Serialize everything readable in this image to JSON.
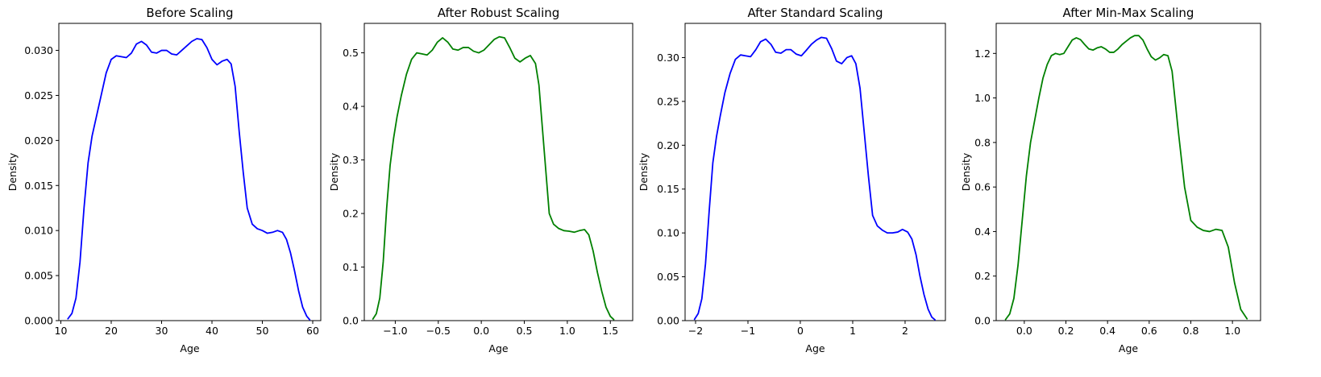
{
  "chart_data": [
    {
      "type": "line",
      "title": "Before Scaling",
      "xlabel": "Age",
      "ylabel": "Density",
      "xlim": [
        9.6,
        61.6
      ],
      "ylim": [
        0,
        0.033
      ],
      "xticks": [
        10,
        20,
        30,
        40,
        50,
        60
      ],
      "xtick_labels": [
        "10",
        "20",
        "30",
        "40",
        "50",
        "60"
      ],
      "yticks": [
        0,
        0.005,
        0.01,
        0.015,
        0.02,
        0.025,
        0.03
      ],
      "ytick_labels": [
        "0.000",
        "0.005",
        "0.010",
        "0.015",
        "0.020",
        "0.025",
        "0.030"
      ],
      "color": "#0000ff",
      "series": [
        {
          "x": [
            11.4,
            12.2,
            13.0,
            13.8,
            14.6,
            15.4,
            16.2,
            17.0,
            18.0,
            19.0,
            20.0,
            21.0,
            22.0,
            23.0,
            24.0,
            25.0,
            26.0,
            27.0,
            28.0,
            29.0,
            30.0,
            31.0,
            32.0,
            33.0,
            34.0,
            35.0,
            36.0,
            37.0,
            38.0,
            39.0,
            40.0,
            41.0,
            42.0,
            43.0,
            43.8,
            44.6,
            45.4,
            46.2,
            47.0,
            48.0,
            49.0,
            50.0,
            51.0,
            52.0,
            53.0,
            54.0,
            54.8,
            55.6,
            56.4,
            57.2,
            58.0,
            58.8,
            59.4
          ],
          "y": [
            0.0002,
            0.0008,
            0.0025,
            0.0065,
            0.0125,
            0.0175,
            0.0205,
            0.0225,
            0.025,
            0.0275,
            0.029,
            0.0294,
            0.0293,
            0.0292,
            0.0297,
            0.0307,
            0.031,
            0.0306,
            0.0298,
            0.0297,
            0.03,
            0.03,
            0.0296,
            0.0295,
            0.03,
            0.0305,
            0.031,
            0.0313,
            0.0312,
            0.0303,
            0.029,
            0.0284,
            0.0288,
            0.029,
            0.0285,
            0.026,
            0.021,
            0.0165,
            0.0125,
            0.0107,
            0.0102,
            0.01,
            0.0097,
            0.0098,
            0.01,
            0.0098,
            0.009,
            0.0075,
            0.0055,
            0.0033,
            0.0015,
            0.0005,
            0.0001
          ]
        }
      ]
    },
    {
      "type": "line",
      "title": "After Robust Scaling",
      "xlabel": "Age",
      "ylabel": "Density",
      "xlim": [
        -1.36,
        1.76
      ],
      "ylim": [
        0,
        0.555
      ],
      "xticks": [
        -1.0,
        -0.5,
        0.0,
        0.5,
        1.0,
        1.5
      ],
      "xtick_labels": [
        "−1.0",
        "−0.5",
        "0.0",
        "0.5",
        "1.0",
        "1.5"
      ],
      "yticks": [
        0,
        0.1,
        0.2,
        0.3,
        0.4,
        0.5
      ],
      "ytick_labels": [
        "0.0",
        "0.1",
        "0.2",
        "0.3",
        "0.4",
        "0.5"
      ],
      "color": "#008000",
      "series": [
        {
          "x": [
            -1.26,
            -1.22,
            -1.18,
            -1.14,
            -1.1,
            -1.06,
            -1.02,
            -0.98,
            -0.93,
            -0.87,
            -0.81,
            -0.75,
            -0.69,
            -0.63,
            -0.57,
            -0.51,
            -0.45,
            -0.39,
            -0.33,
            -0.27,
            -0.21,
            -0.15,
            -0.09,
            -0.03,
            0.03,
            0.09,
            0.15,
            0.21,
            0.27,
            0.33,
            0.39,
            0.45,
            0.51,
            0.57,
            0.63,
            0.67,
            0.71,
            0.75,
            0.79,
            0.84,
            0.9,
            0.96,
            1.02,
            1.08,
            1.14,
            1.2,
            1.25,
            1.3,
            1.35,
            1.4,
            1.45,
            1.5,
            1.54
          ],
          "y": [
            0.003,
            0.013,
            0.042,
            0.11,
            0.21,
            0.29,
            0.34,
            0.38,
            0.42,
            0.46,
            0.488,
            0.5,
            0.498,
            0.496,
            0.505,
            0.52,
            0.528,
            0.52,
            0.507,
            0.505,
            0.51,
            0.51,
            0.503,
            0.5,
            0.505,
            0.515,
            0.525,
            0.53,
            0.528,
            0.51,
            0.49,
            0.483,
            0.49,
            0.495,
            0.48,
            0.44,
            0.36,
            0.28,
            0.2,
            0.18,
            0.172,
            0.168,
            0.167,
            0.165,
            0.168,
            0.17,
            0.16,
            0.13,
            0.09,
            0.055,
            0.025,
            0.008,
            0.002
          ]
        }
      ]
    },
    {
      "type": "line",
      "title": "After Standard Scaling",
      "xlabel": "Age",
      "ylabel": "Density",
      "xlim": [
        -2.2,
        2.77
      ],
      "ylim": [
        0,
        0.339
      ],
      "xticks": [
        -2,
        -1,
        0,
        1,
        2
      ],
      "xtick_labels": [
        "−2",
        "−1",
        "0",
        "1",
        "2"
      ],
      "yticks": [
        0,
        0.05,
        0.1,
        0.15,
        0.2,
        0.25,
        0.3
      ],
      "ytick_labels": [
        "0.00",
        "0.05",
        "0.10",
        "0.15",
        "0.20",
        "0.25",
        "0.30"
      ],
      "color": "#0000ff",
      "series": [
        {
          "x": [
            -2.02,
            -1.95,
            -1.88,
            -1.81,
            -1.74,
            -1.67,
            -1.6,
            -1.53,
            -1.44,
            -1.34,
            -1.24,
            -1.14,
            -1.05,
            -0.95,
            -0.85,
            -0.76,
            -0.66,
            -0.56,
            -0.47,
            -0.37,
            -0.27,
            -0.18,
            -0.08,
            0.02,
            0.11,
            0.21,
            0.31,
            0.4,
            0.5,
            0.6,
            0.69,
            0.79,
            0.89,
            0.98,
            1.06,
            1.14,
            1.22,
            1.3,
            1.38,
            1.47,
            1.57,
            1.66,
            1.76,
            1.86,
            1.95,
            2.05,
            2.13,
            2.21,
            2.28,
            2.36,
            2.44,
            2.51,
            2.57
          ],
          "y": [
            0.0015,
            0.008,
            0.025,
            0.065,
            0.125,
            0.18,
            0.21,
            0.233,
            0.26,
            0.282,
            0.298,
            0.303,
            0.302,
            0.301,
            0.309,
            0.318,
            0.321,
            0.315,
            0.306,
            0.305,
            0.309,
            0.309,
            0.304,
            0.302,
            0.308,
            0.315,
            0.32,
            0.323,
            0.322,
            0.31,
            0.296,
            0.293,
            0.3,
            0.302,
            0.293,
            0.265,
            0.215,
            0.165,
            0.12,
            0.108,
            0.103,
            0.1,
            0.1,
            0.101,
            0.104,
            0.101,
            0.093,
            0.075,
            0.052,
            0.03,
            0.013,
            0.004,
            0.001
          ]
        }
      ]
    },
    {
      "type": "line",
      "title": "After Min-Max Scaling",
      "xlabel": "Age",
      "ylabel": "Density",
      "xlim": [
        -0.135,
        1.135
      ],
      "ylim": [
        0,
        1.335
      ],
      "xticks": [
        0.0,
        0.2,
        0.4,
        0.6,
        0.8,
        1.0
      ],
      "xtick_labels": [
        "0.0",
        "0.2",
        "0.4",
        "0.6",
        "0.8",
        "1.0"
      ],
      "yticks": [
        0,
        0.2,
        0.4,
        0.6,
        0.8,
        1.0,
        1.2
      ],
      "ytick_labels": [
        "0.0",
        "0.2",
        "0.4",
        "0.6",
        "0.8",
        "1.0",
        "1.2"
      ],
      "color": "#008000",
      "series": [
        {
          "x": [
            -0.09,
            -0.07,
            -0.05,
            -0.03,
            -0.01,
            0.01,
            0.03,
            0.05,
            0.07,
            0.09,
            0.11,
            0.13,
            0.15,
            0.17,
            0.19,
            0.21,
            0.23,
            0.25,
            0.27,
            0.29,
            0.31,
            0.33,
            0.35,
            0.37,
            0.39,
            0.41,
            0.43,
            0.45,
            0.47,
            0.49,
            0.51,
            0.53,
            0.55,
            0.57,
            0.59,
            0.61,
            0.63,
            0.65,
            0.67,
            0.69,
            0.71,
            0.74,
            0.77,
            0.8,
            0.83,
            0.86,
            0.89,
            0.92,
            0.95,
            0.98,
            1.01,
            1.04,
            1.07
          ],
          "y": [
            0.005,
            0.03,
            0.1,
            0.25,
            0.45,
            0.65,
            0.8,
            0.9,
            1.0,
            1.09,
            1.15,
            1.19,
            1.2,
            1.195,
            1.2,
            1.23,
            1.26,
            1.27,
            1.262,
            1.24,
            1.22,
            1.215,
            1.225,
            1.23,
            1.22,
            1.205,
            1.205,
            1.22,
            1.24,
            1.255,
            1.27,
            1.28,
            1.28,
            1.26,
            1.22,
            1.185,
            1.17,
            1.18,
            1.195,
            1.19,
            1.12,
            0.85,
            0.6,
            0.45,
            0.42,
            0.405,
            0.4,
            0.41,
            0.405,
            0.33,
            0.17,
            0.05,
            0.008
          ]
        }
      ]
    }
  ]
}
